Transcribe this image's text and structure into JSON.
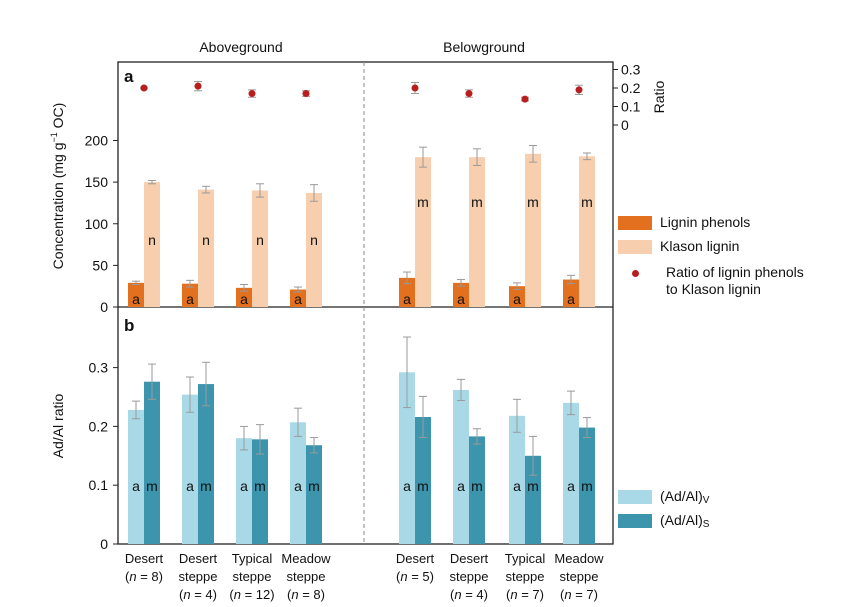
{
  "colors": {
    "lignin_phenols": "#e2701f",
    "klason_lignin": "#f8cfae",
    "ratio_dot": "#b81e1e",
    "adal_v": "#a9d9e7",
    "adal_s": "#3c95ad",
    "error_bar": "#9a9a9a"
  },
  "header": {
    "above": "Aboveground",
    "below": "Belowground"
  },
  "panels": {
    "a": "a",
    "b": "b"
  },
  "legend_top": {
    "lignin_phenols": "Lignin phenols",
    "klason_lignin": "Klason lignin",
    "ratio_line1": "Ratio of lignin phenols",
    "ratio_line2": "to Klason lignin"
  },
  "legend_bottom": {
    "v_main": "(Ad/Al)",
    "v_sub": "V",
    "s_main": "(Ad/Al)",
    "s_sub": "S"
  },
  "chart_data": [
    {
      "panel": "a",
      "type": "bar",
      "ylabel_main": "Concentration (mg g",
      "ylabel_sup": "−1",
      "ylabel_end": " OC)",
      "ylim": [
        0,
        200
      ],
      "yticks": [
        "0",
        "50",
        "100",
        "150",
        "200"
      ],
      "categories": [
        "Desert (n = 8)",
        "Desert steppe (n = 4)",
        "Typical steppe (n = 12)",
        "Meadow steppe (n = 8)",
        "Desert (n = 5)",
        "Desert steppe (n = 4)",
        "Typical steppe (n = 7)",
        "Meadow steppe (n = 7)"
      ],
      "groups": [
        "Aboveground",
        "Aboveground",
        "Aboveground",
        "Aboveground",
        "Belowground",
        "Belowground",
        "Belowground",
        "Belowground"
      ],
      "series": [
        {
          "name": "Lignin phenols",
          "values": [
            29,
            28,
            23,
            21,
            35,
            29,
            25,
            33
          ],
          "errors": [
            2,
            4,
            4,
            3,
            7,
            4,
            4,
            5
          ],
          "letters": [
            "a",
            "a",
            "a",
            "a",
            "a",
            "a",
            "a",
            "a"
          ]
        },
        {
          "name": "Klason lignin",
          "values": [
            150,
            141,
            140,
            137,
            180,
            180,
            184,
            181
          ],
          "errors": [
            2,
            4,
            8,
            10,
            12,
            10,
            10,
            4
          ],
          "letters": [
            "n",
            "n",
            "n",
            "n",
            "m",
            "m",
            "m",
            "m"
          ]
        }
      ],
      "ratio": {
        "name": "Ratio of lignin phenols to Klason lignin",
        "axis_label": "Ratio",
        "ylim": [
          0,
          0.3
        ],
        "yticks": [
          "0",
          "0.1",
          "0.2",
          "0.3"
        ],
        "values": [
          0.2,
          0.21,
          0.17,
          0.17,
          0.2,
          0.17,
          0.14,
          0.19
        ],
        "errors": [
          0.005,
          0.025,
          0.02,
          0.015,
          0.03,
          0.02,
          0.01,
          0.025
        ]
      }
    },
    {
      "panel": "b",
      "type": "bar",
      "ylabel": "Ad/Al ratio",
      "ylim": [
        0,
        0.4
      ],
      "yticks": [
        "0",
        "0.1",
        "0.2",
        "0.3"
      ],
      "series": [
        {
          "name": "(Ad/Al)V",
          "values": [
            0.228,
            0.254,
            0.18,
            0.207,
            0.292,
            0.262,
            0.218,
            0.24
          ],
          "errors": [
            0.015,
            0.03,
            0.02,
            0.024,
            0.06,
            0.018,
            0.028,
            0.02
          ],
          "letters": [
            "a",
            "a",
            "a",
            "a",
            "a",
            "a",
            "a",
            "a"
          ]
        },
        {
          "name": "(Ad/Al)S",
          "values": [
            0.276,
            0.272,
            0.178,
            0.168,
            0.216,
            0.183,
            0.15,
            0.198
          ],
          "errors": [
            0.03,
            0.037,
            0.025,
            0.013,
            0.035,
            0.013,
            0.033,
            0.017
          ],
          "letters": [
            "m",
            "m",
            "m",
            "m",
            "m",
            "m",
            "m",
            "m"
          ]
        }
      ]
    }
  ],
  "xlabels": [
    {
      "l1": "Desert",
      "n": "8",
      "l2": ""
    },
    {
      "l1": "Desert",
      "n": "4",
      "l2": "steppe"
    },
    {
      "l1": "Typical",
      "n": "12",
      "l2": "steppe"
    },
    {
      "l1": "Meadow",
      "n": "8",
      "l2": "steppe"
    },
    {
      "l1": "Desert",
      "n": "5",
      "l2": ""
    },
    {
      "l1": "Desert",
      "n": "4",
      "l2": "steppe"
    },
    {
      "l1": "Typical",
      "n": "7",
      "l2": "steppe"
    },
    {
      "l1": "Meadow",
      "n": "7",
      "l2": "steppe"
    }
  ]
}
